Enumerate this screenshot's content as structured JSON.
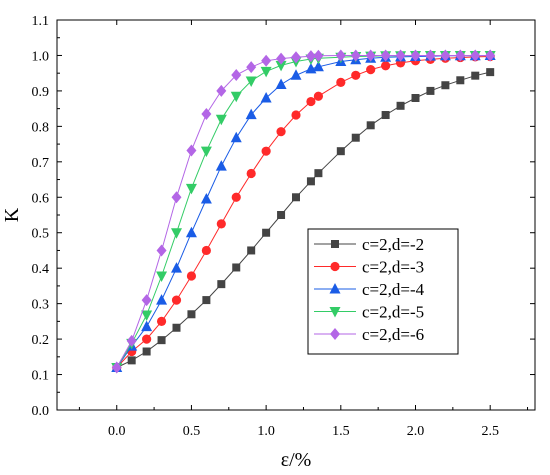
{
  "chart_data": {
    "type": "line",
    "xlabel": "ε/%",
    "ylabel": "K",
    "xlim": [
      -0.4,
      2.8
    ],
    "ylim": [
      0.0,
      1.1
    ],
    "xticks": [
      "0.0",
      "0.5",
      "1.0",
      "1.5",
      "2.0",
      "2.5"
    ],
    "yticks": [
      "0.0",
      "0.1",
      "0.2",
      "0.3",
      "0.4",
      "0.5",
      "0.6",
      "0.7",
      "0.8",
      "0.9",
      "1.0",
      "1.1"
    ],
    "legend_position": "center-right",
    "series": [
      {
        "name": "c=2,d=-2",
        "color": "#444444",
        "marker": "square",
        "x": [
          0.0,
          0.1,
          0.2,
          0.3,
          0.4,
          0.5,
          0.6,
          0.7,
          0.8,
          0.9,
          1.0,
          1.1,
          1.2,
          1.3,
          1.35,
          1.5,
          1.6,
          1.7,
          1.8,
          1.9,
          2.0,
          2.1,
          2.2,
          2.3,
          2.4,
          2.5
        ],
        "y": [
          0.12,
          0.14,
          0.165,
          0.197,
          0.232,
          0.27,
          0.31,
          0.355,
          0.402,
          0.45,
          0.5,
          0.55,
          0.6,
          0.645,
          0.668,
          0.73,
          0.768,
          0.803,
          0.832,
          0.858,
          0.88,
          0.9,
          0.916,
          0.93,
          0.943,
          0.953
        ]
      },
      {
        "name": "c=2,d=-3",
        "color": "#ff2a2a",
        "marker": "circle",
        "x": [
          0.0,
          0.1,
          0.2,
          0.3,
          0.4,
          0.5,
          0.6,
          0.7,
          0.8,
          0.9,
          1.0,
          1.1,
          1.2,
          1.3,
          1.35,
          1.5,
          1.6,
          1.7,
          1.8,
          1.9,
          2.0,
          2.1,
          2.2,
          2.3,
          2.4,
          2.5
        ],
        "y": [
          0.12,
          0.165,
          0.2,
          0.25,
          0.31,
          0.378,
          0.45,
          0.525,
          0.6,
          0.667,
          0.73,
          0.785,
          0.832,
          0.87,
          0.885,
          0.924,
          0.944,
          0.96,
          0.971,
          0.979,
          0.985,
          0.989,
          0.992,
          0.994,
          0.996,
          0.997
        ]
      },
      {
        "name": "c=2,d=-4",
        "color": "#1a5ce6",
        "marker": "triangle-up",
        "x": [
          0.0,
          0.1,
          0.2,
          0.3,
          0.4,
          0.5,
          0.6,
          0.7,
          0.8,
          0.9,
          1.0,
          1.1,
          1.2,
          1.3,
          1.35,
          1.5,
          1.6,
          1.7,
          1.8,
          1.9,
          2.0,
          2.1,
          2.2,
          2.3,
          2.4,
          2.5
        ],
        "y": [
          0.12,
          0.18,
          0.235,
          0.31,
          0.4,
          0.5,
          0.595,
          0.688,
          0.768,
          0.833,
          0.88,
          0.918,
          0.944,
          0.962,
          0.968,
          0.983,
          0.988,
          0.992,
          0.995,
          0.996,
          0.997,
          0.998,
          0.999,
          0.999,
          0.999,
          1.0
        ]
      },
      {
        "name": "c=2,d=-5",
        "color": "#33cc66",
        "marker": "triangle-down",
        "x": [
          0.0,
          0.1,
          0.2,
          0.3,
          0.4,
          0.5,
          0.6,
          0.7,
          0.8,
          0.9,
          1.0,
          1.1,
          1.2,
          1.3,
          1.35,
          1.5,
          1.6,
          1.7,
          1.8,
          1.9,
          2.0,
          2.1,
          2.2,
          2.3,
          2.4,
          2.5
        ],
        "y": [
          0.12,
          0.188,
          0.268,
          0.378,
          0.5,
          0.625,
          0.73,
          0.82,
          0.885,
          0.928,
          0.955,
          0.972,
          0.983,
          0.99,
          0.992,
          0.995,
          0.997,
          0.998,
          0.999,
          0.999,
          1.0,
          1.0,
          1.0,
          1.0,
          1.0,
          1.0
        ]
      },
      {
        "name": "c=2,d=-6",
        "color": "#b366e6",
        "marker": "diamond",
        "x": [
          0.0,
          0.1,
          0.2,
          0.3,
          0.4,
          0.5,
          0.6,
          0.7,
          0.8,
          0.9,
          1.0,
          1.1,
          1.2,
          1.3,
          1.35,
          1.5,
          1.6,
          1.7,
          1.8,
          1.9,
          2.0,
          2.1,
          2.2,
          2.3,
          2.4,
          2.5
        ],
        "y": [
          0.12,
          0.195,
          0.31,
          0.45,
          0.6,
          0.732,
          0.835,
          0.9,
          0.945,
          0.967,
          0.985,
          0.991,
          0.995,
          0.998,
          0.999,
          1.0,
          1.0,
          1.0,
          1.0,
          1.0,
          1.0,
          1.0,
          1.0,
          1.0,
          1.0,
          1.0
        ]
      }
    ]
  }
}
